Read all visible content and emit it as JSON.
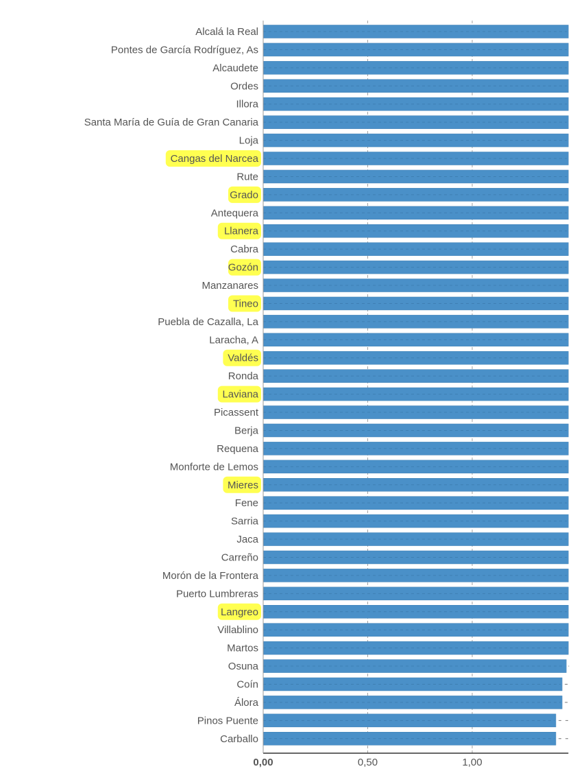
{
  "chart_data": {
    "type": "bar",
    "orientation": "horizontal",
    "categories": [
      "Alcalá la Real",
      "Pontes de García Rodríguez, As",
      "Alcaudete",
      "Ordes",
      "Illora",
      "Santa María de Guía de Gran Canaria",
      "Loja",
      "Cangas del Narcea",
      "Rute",
      "Grado",
      "Antequera",
      "Llanera",
      "Cabra",
      "Gozón",
      "Manzanares",
      "Tineo",
      "Puebla de Cazalla, La",
      "Laracha, A",
      "Valdés",
      "Ronda",
      "Laviana",
      "Picassent",
      "Berja",
      "Requena",
      "Monforte de Lemos",
      "Mieres",
      "Fene",
      "Sarria",
      "Jaca",
      "Carreño",
      "Morón de la Frontera",
      "Puerto Lumbreras",
      "Langreo",
      "Villablino",
      "Martos",
      "Osuna",
      "Coín",
      "Álora",
      "Pinos Puente",
      "Carballo"
    ],
    "values": [
      1.46,
      1.46,
      1.46,
      1.46,
      1.46,
      1.46,
      1.46,
      1.46,
      1.46,
      1.46,
      1.46,
      1.46,
      1.46,
      1.46,
      1.46,
      1.46,
      1.46,
      1.46,
      1.46,
      1.46,
      1.46,
      1.46,
      1.46,
      1.46,
      1.46,
      1.46,
      1.46,
      1.46,
      1.46,
      1.46,
      1.46,
      1.46,
      1.46,
      1.46,
      1.46,
      1.45,
      1.43,
      1.43,
      1.4,
      1.4
    ],
    "highlighted": [
      "Cangas del Narcea",
      "Grado",
      "Llanera",
      "Gozón",
      "Tineo",
      "Valdés",
      "Laviana",
      "Mieres",
      "Langreo"
    ],
    "xticks": [
      "0,00",
      "0,50",
      "1,00"
    ],
    "xtick_values": [
      0,
      0.5,
      1.0
    ],
    "xlim": [
      0,
      1.46
    ],
    "grid": true,
    "colors": {
      "bar": "#4a90c8",
      "bar_edge": "#3d7fb5",
      "highlight": "#ffff33",
      "grid": "#666666",
      "text": "#555555"
    }
  }
}
